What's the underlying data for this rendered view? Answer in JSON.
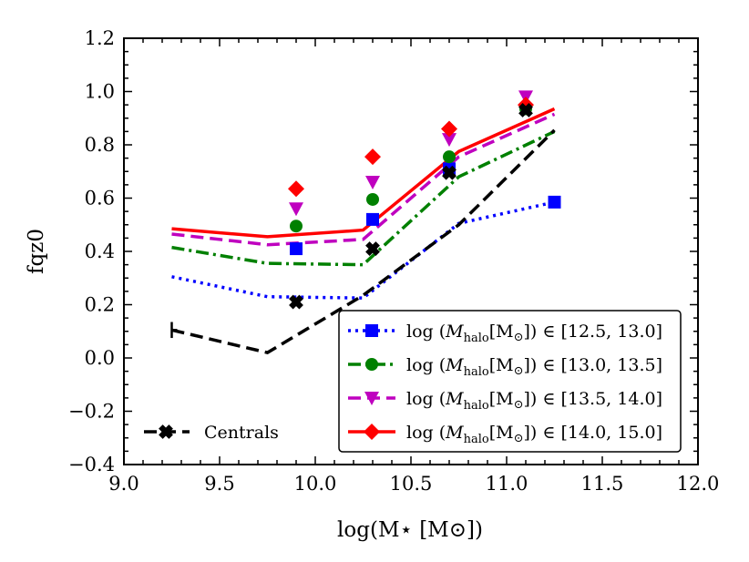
{
  "chart_data": {
    "type": "line",
    "title": "",
    "xlabel": "log(M⋆ [M⊙])",
    "ylabel": "fqz0",
    "xlim": [
      9.0,
      12.0
    ],
    "ylim": [
      -0.4,
      1.2
    ],
    "x_ticks": [
      9.0,
      9.5,
      10.0,
      10.5,
      11.0,
      11.5,
      12.0
    ],
    "x_tick_labels": [
      "9.0",
      "9.5",
      "10.0",
      "10.5",
      "11.0",
      "11.5",
      "12.0"
    ],
    "y_ticks": [
      -0.4,
      -0.2,
      0.0,
      0.2,
      0.4,
      0.6,
      0.8,
      1.0,
      1.2
    ],
    "y_tick_labels": [
      "−0.4",
      "−0.2",
      "0.0",
      "0.2",
      "0.4",
      "0.6",
      "0.8",
      "1.0",
      "1.2"
    ],
    "grid": false,
    "legend_position": "lower-right",
    "series": [
      {
        "name": "log(Mhalo[M⊙]) ∈ [12.5, 13.0]",
        "legend_prefix": "log",
        "legend_var": "M",
        "legend_sub": "halo",
        "legend_unit": "[M",
        "legend_sun": "⊙",
        "legend_range": "]) ∈ [12.5, 13.0]",
        "color": "#0000ff",
        "line_style": "dotted",
        "marker": "square",
        "line_x": [
          9.25,
          9.75,
          10.25,
          10.75,
          11.25
        ],
        "line_y": [
          0.305,
          0.23,
          0.225,
          0.505,
          0.585
        ],
        "points_x": [
          9.9,
          10.3,
          10.7,
          11.25
        ],
        "points_y": [
          0.41,
          0.52,
          0.71,
          0.585
        ]
      },
      {
        "name": "log(Mhalo[M⊙]) ∈ [13.0, 13.5]",
        "legend_prefix": "log",
        "legend_var": "M",
        "legend_sub": "halo",
        "legend_unit": "[M",
        "legend_sun": "⊙",
        "legend_range": "]) ∈ [13.0, 13.5]",
        "color": "#008000",
        "line_style": "dashdot",
        "marker": "circle",
        "line_x": [
          9.25,
          9.75,
          10.25,
          10.75,
          11.25
        ],
        "line_y": [
          0.415,
          0.355,
          0.35,
          0.68,
          0.85
        ],
        "points_x": [
          9.9,
          10.3,
          10.7,
          11.1
        ],
        "points_y": [
          0.495,
          0.595,
          0.755,
          0.935
        ]
      },
      {
        "name": "log(Mhalo[M⊙]) ∈ [13.5, 14.0]",
        "legend_prefix": "log",
        "legend_var": "M",
        "legend_sub": "halo",
        "legend_unit": "[M",
        "legend_sun": "⊙",
        "legend_range": "]) ∈ [13.5, 14.0]",
        "color": "#bf00bf",
        "line_style": "dashed",
        "marker": "triangle_down",
        "line_x": [
          9.25,
          9.75,
          10.25,
          10.75,
          11.25
        ],
        "line_y": [
          0.465,
          0.425,
          0.445,
          0.755,
          0.915
        ],
        "points_x": [
          9.9,
          10.3,
          10.7,
          11.1
        ],
        "points_y": [
          0.56,
          0.66,
          0.82,
          0.98
        ]
      },
      {
        "name": "log(Mhalo[M⊙]) ∈ [14.0, 15.0]",
        "legend_prefix": "log",
        "legend_var": "M",
        "legend_sub": "halo",
        "legend_unit": "[M",
        "legend_sun": "⊙",
        "legend_range": "]) ∈ [14.0, 15.0]",
        "color": "#ff0000",
        "line_style": "solid",
        "marker": "diamond",
        "line_x": [
          9.25,
          9.75,
          10.25,
          10.75,
          11.25
        ],
        "line_y": [
          0.485,
          0.455,
          0.48,
          0.775,
          0.935
        ],
        "points_x": [
          9.9,
          10.3,
          10.7,
          11.1
        ],
        "points_y": [
          0.635,
          0.755,
          0.86,
          0.95
        ]
      },
      {
        "name": "Centrals",
        "color": "#000000",
        "line_style": "dashed",
        "marker": "x_filled",
        "line_x": [
          9.25,
          9.75,
          10.25,
          10.75,
          11.25
        ],
        "line_y": [
          0.105,
          0.02,
          0.235,
          0.5,
          0.855
        ],
        "points_x": [
          9.9,
          10.3,
          10.7,
          11.1
        ],
        "points_y": [
          0.21,
          0.41,
          0.695,
          0.93
        ],
        "errorbar": {
          "x": 9.25,
          "y_low": 0.075,
          "y_high": 0.135
        }
      }
    ]
  }
}
